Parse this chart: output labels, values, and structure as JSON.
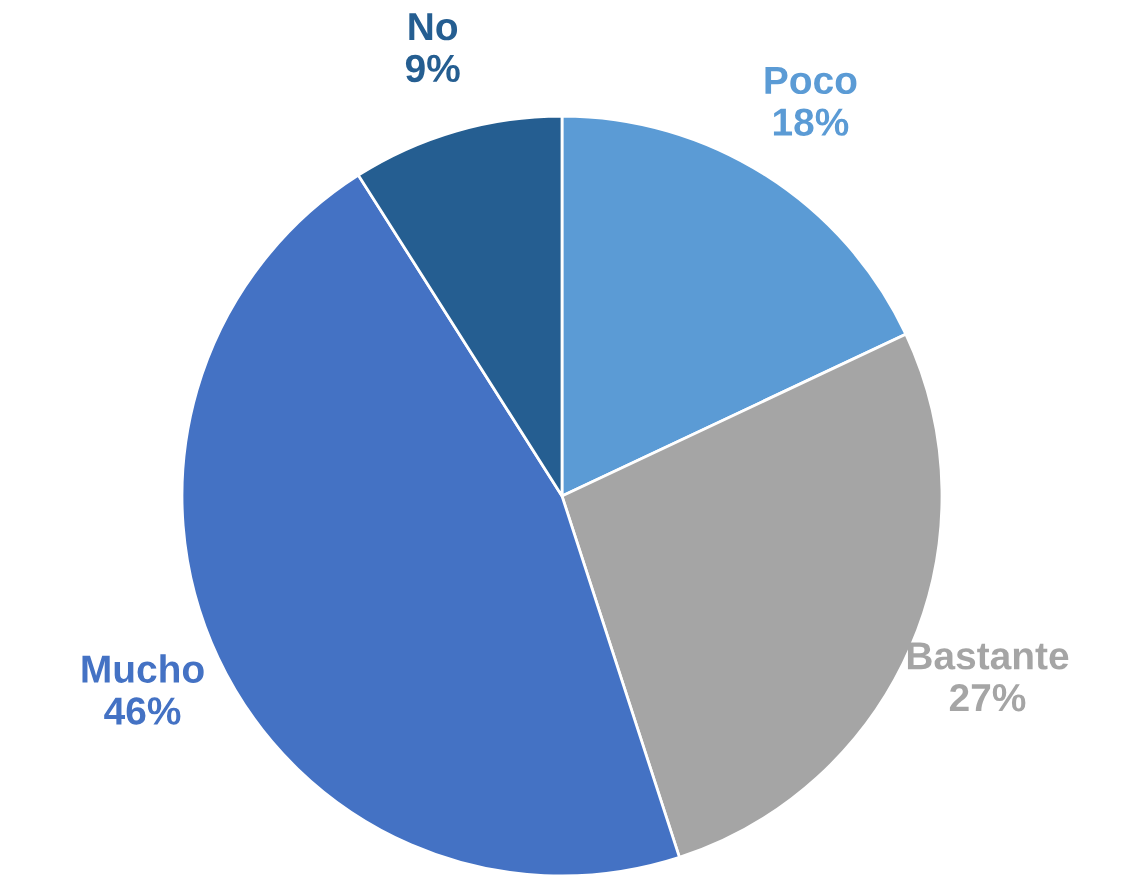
{
  "chart_data": {
    "type": "pie",
    "categories": [
      "Poco",
      "Bastante",
      "Mucho",
      "No"
    ],
    "values": [
      18,
      27,
      46,
      9
    ],
    "value_labels": [
      "18%",
      "27%",
      "46%",
      "9%"
    ],
    "colors": [
      "#5b9bd5",
      "#a5a5a5",
      "#4472c4",
      "#255e91"
    ],
    "legend": false
  }
}
